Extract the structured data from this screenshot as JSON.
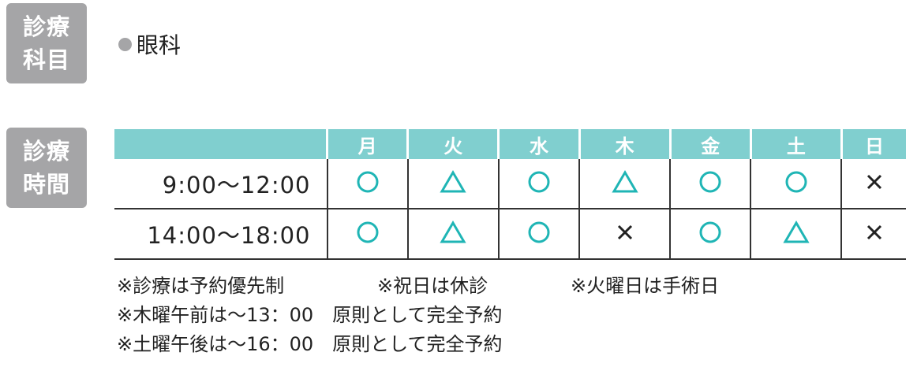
{
  "department": {
    "label": [
      "診療",
      "科目"
    ],
    "value": "眼科"
  },
  "hours": {
    "label": [
      "診療",
      "時間"
    ],
    "days": [
      "月",
      "火",
      "水",
      "木",
      "金",
      "土",
      "日"
    ],
    "rows": [
      {
        "time": "9:00〜12:00",
        "marks": [
          "circle",
          "triangle",
          "circle",
          "triangle",
          "circle",
          "circle",
          "cross"
        ]
      },
      {
        "time": "14:00〜18:00",
        "marks": [
          "circle",
          "triangle",
          "circle",
          "cross",
          "circle",
          "triangle",
          "cross"
        ]
      }
    ]
  },
  "notes": [
    [
      "※診療は予約優先制",
      "※祝日は休診",
      "※火曜日は手術日"
    ],
    [
      "※木曜午前は〜13：00　原則として完全予約"
    ],
    [
      "※土曜午後は〜16：00　原則として完全予約"
    ]
  ],
  "colors": {
    "header": "#80cfcf",
    "mark": "#1fb5b5",
    "label_bg": "#a5a5a7"
  }
}
